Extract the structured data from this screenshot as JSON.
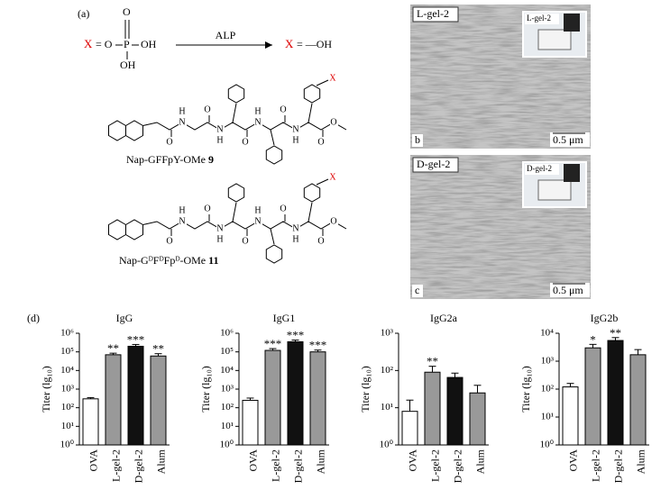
{
  "panel_a": {
    "label": "(a)",
    "reactant": {
      "x": "X",
      "eq": "= O",
      "p": "P",
      "o_top": "O",
      "oh_right": "OH",
      "oh_bottom": "OH"
    },
    "enzyme": "ALP",
    "product": {
      "x": "X",
      "eq": "= —OH"
    },
    "molecules": [
      {
        "atoms": [
          "O",
          "H",
          "N",
          "O",
          "N",
          "H",
          "O",
          "H",
          "N",
          "O",
          "N",
          "H",
          "O",
          "O",
          "X"
        ],
        "name": "Nap-GFFpY-OMe",
        "number": "9"
      },
      {
        "atoms": [
          "O",
          "H",
          "N",
          "O",
          "N",
          "H",
          "O",
          "H",
          "N",
          "O",
          "N",
          "H",
          "O",
          "O",
          "X"
        ],
        "name": "Nap-GᴰFᴰFpᴰ-OMe",
        "number": "11"
      }
    ]
  },
  "micrographs": [
    {
      "label": "L-gel-2",
      "inset": "L-gel-2",
      "panel": "b",
      "scale": "0.5 μm"
    },
    {
      "label": "D-gel-2",
      "inset": "D-gel-2",
      "panel": "c",
      "scale": "0.5 μm"
    }
  ],
  "panel_d_label": "(d)",
  "chart_data": [
    {
      "type": "bar",
      "title": "IgG",
      "ylabel": "Titer (lg₁₀)",
      "categories": [
        "OVA",
        "L-gel-2",
        "D-gel-2",
        "Alum"
      ],
      "values": [
        300,
        70000,
        200000,
        60000
      ],
      "errors": [
        50,
        15000,
        50000,
        20000
      ],
      "colors": [
        "#ffffff",
        "#999999",
        "#111111",
        "#999999"
      ],
      "annotations": [
        null,
        "**",
        "***",
        "**"
      ],
      "log_scale": true,
      "ylim": [
        1,
        1000000
      ],
      "yticks": [
        {
          "value": 1,
          "label": "10⁰"
        },
        {
          "value": 10,
          "label": "10¹"
        },
        {
          "value": 100,
          "label": "10²"
        },
        {
          "value": 1000,
          "label": "10³"
        },
        {
          "value": 10000,
          "label": "10⁴"
        },
        {
          "value": 100000,
          "label": "10⁵"
        },
        {
          "value": 1000000,
          "label": "10⁶"
        }
      ]
    },
    {
      "type": "bar",
      "title": "IgG1",
      "ylabel": "Titer (lg₁₀)",
      "categories": [
        "OVA",
        "L-gel-2",
        "D-gel-2",
        "Alum"
      ],
      "values": [
        250,
        120000,
        350000,
        100000
      ],
      "errors": [
        80,
        30000,
        80000,
        25000
      ],
      "colors": [
        "#ffffff",
        "#999999",
        "#111111",
        "#999999"
      ],
      "annotations": [
        null,
        "***",
        "***",
        "***"
      ],
      "log_scale": true,
      "ylim": [
        1,
        1000000
      ],
      "yticks": [
        {
          "value": 1,
          "label": "10⁰"
        },
        {
          "value": 10,
          "label": "10¹"
        },
        {
          "value": 100,
          "label": "10²"
        },
        {
          "value": 1000,
          "label": "10³"
        },
        {
          "value": 10000,
          "label": "10⁴"
        },
        {
          "value": 100000,
          "label": "10⁵"
        },
        {
          "value": 1000000,
          "label": "10⁶"
        }
      ]
    },
    {
      "type": "bar",
      "title": "IgG2a",
      "ylabel": "Titer (lg₁₀)",
      "categories": [
        "OVA",
        "L-gel-2",
        "D-gel-2",
        "Alum"
      ],
      "values": [
        8,
        90,
        65,
        25
      ],
      "errors": [
        8,
        40,
        20,
        15
      ],
      "colors": [
        "#ffffff",
        "#999999",
        "#111111",
        "#999999"
      ],
      "annotations": [
        null,
        "**",
        null,
        null
      ],
      "log_scale": true,
      "ylim": [
        1,
        1000
      ],
      "yticks": [
        {
          "value": 1,
          "label": "10⁰"
        },
        {
          "value": 10,
          "label": "10¹"
        },
        {
          "value": 100,
          "label": "10²"
        },
        {
          "value": 1000,
          "label": "10³"
        }
      ]
    },
    {
      "type": "bar",
      "title": "IgG2b",
      "ylabel": "Titer (lg₁₀)",
      "categories": [
        "OVA",
        "L-gel-2",
        "D-gel-2",
        "Alum"
      ],
      "values": [
        120,
        3000,
        5500,
        1700
      ],
      "errors": [
        40,
        1000,
        1500,
        900
      ],
      "colors": [
        "#ffffff",
        "#999999",
        "#111111",
        "#999999"
      ],
      "annotations": [
        null,
        "*",
        "**",
        null
      ],
      "log_scale": true,
      "ylim": [
        1,
        10000
      ],
      "yticks": [
        {
          "value": 1,
          "label": "10⁰"
        },
        {
          "value": 10,
          "label": "10¹"
        },
        {
          "value": 100,
          "label": "10²"
        },
        {
          "value": 1000,
          "label": "10³"
        },
        {
          "value": 10000,
          "label": "10⁴"
        }
      ]
    }
  ]
}
